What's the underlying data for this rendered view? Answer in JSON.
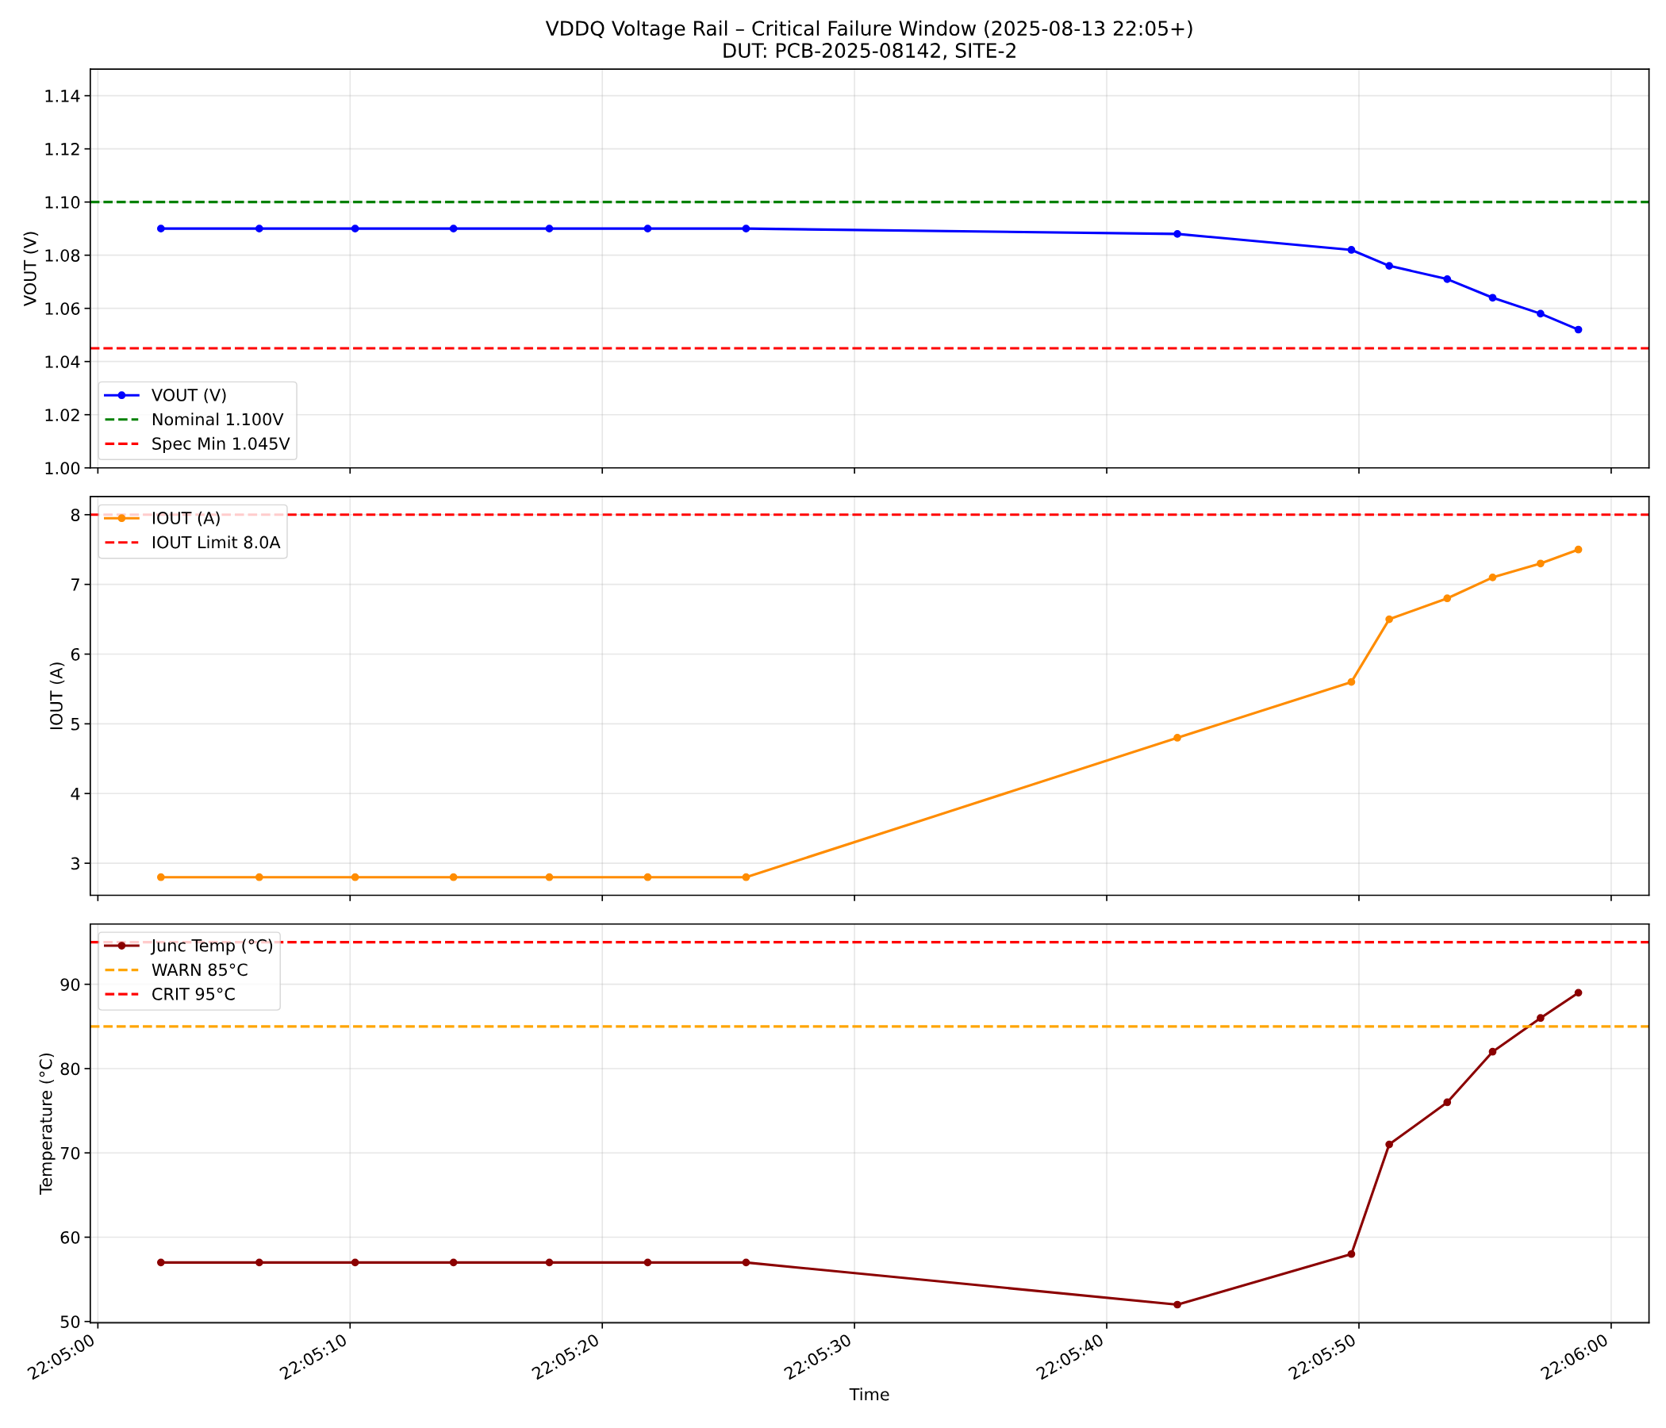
{
  "chart_data": [
    {
      "type": "line",
      "title": "VDDQ Voltage Rail – Critical Failure Window (2025-08-13 22:05+)",
      "subtitle": "DUT: PCB-2025-08142, SITE-2",
      "ylabel": "VOUT (V)",
      "x": [
        "2025-08-13T22:05:02.5",
        "2025-08-13T22:05:06.4",
        "2025-08-13T22:05:10.2",
        "2025-08-13T22:05:14.1",
        "2025-08-13T22:05:17.9",
        "2025-08-13T22:05:21.8",
        "2025-08-13T22:05:25.7",
        "2025-08-13T22:05:42.8",
        "2025-08-13T22:05:49.7",
        "2025-08-13T22:05:51.2",
        "2025-08-13T22:05:53.5",
        "2025-08-13T22:05:55.3",
        "2025-08-13T22:05:57.2",
        "2025-08-13T22:05:58.7"
      ],
      "series": [
        {
          "name": "VOUT (V)",
          "color": "#0000ff",
          "values": [
            1.09,
            1.09,
            1.09,
            1.09,
            1.09,
            1.09,
            1.09,
            1.088,
            1.082,
            1.076,
            1.071,
            1.064,
            1.058,
            1.052
          ]
        }
      ],
      "ref_lines": [
        {
          "axis": "y",
          "value": 1.1,
          "label": "Nominal 1.100V",
          "color": "#008000",
          "line_style": "dashed"
        },
        {
          "axis": "y",
          "value": 1.045,
          "label": "Spec Min 1.045V",
          "color": "#ff0000",
          "line_style": "dashed"
        }
      ],
      "xlim": [
        "2025-08-13T22:04:59.7",
        "2025-08-13T22:06:01.5"
      ],
      "xticks": [
        {
          "value": "2025-08-13T22:05:00",
          "label": null
        },
        {
          "value": "2025-08-13T22:05:10",
          "label": null
        },
        {
          "value": "2025-08-13T22:05:20",
          "label": null
        },
        {
          "value": "2025-08-13T22:05:30",
          "label": null
        },
        {
          "value": "2025-08-13T22:05:40",
          "label": null
        },
        {
          "value": "2025-08-13T22:05:50",
          "label": null
        },
        {
          "value": "2025-08-13T22:06:00",
          "label": null
        }
      ],
      "ylim": [
        1.0,
        1.15
      ],
      "yticks": [
        {
          "value": 1.0,
          "label": "1.00"
        },
        {
          "value": 1.02,
          "label": "1.02"
        },
        {
          "value": 1.04,
          "label": "1.04"
        },
        {
          "value": 1.06,
          "label": "1.06"
        },
        {
          "value": 1.08,
          "label": "1.08"
        },
        {
          "value": 1.1,
          "label": "1.10"
        },
        {
          "value": 1.12,
          "label": "1.12"
        },
        {
          "value": 1.14,
          "label": "1.14"
        }
      ],
      "grid": true,
      "legend": "bottom left",
      "marker": "circle",
      "line_style": "solid",
      "tick_labels": "y"
    },
    {
      "type": "line",
      "ylabel": "IOUT (A)",
      "x": [
        "2025-08-13T22:05:02.5",
        "2025-08-13T22:05:06.4",
        "2025-08-13T22:05:10.2",
        "2025-08-13T22:05:14.1",
        "2025-08-13T22:05:17.9",
        "2025-08-13T22:05:21.8",
        "2025-08-13T22:05:25.7",
        "2025-08-13T22:05:42.8",
        "2025-08-13T22:05:49.7",
        "2025-08-13T22:05:51.2",
        "2025-08-13T22:05:53.5",
        "2025-08-13T22:05:55.3",
        "2025-08-13T22:05:57.2",
        "2025-08-13T22:05:58.7"
      ],
      "series": [
        {
          "name": "IOUT (A)",
          "color": "#ff8c00",
          "values": [
            2.8,
            2.8,
            2.8,
            2.8,
            2.8,
            2.8,
            2.8,
            4.8,
            5.6,
            6.5,
            6.8,
            7.1,
            7.3,
            7.5
          ]
        }
      ],
      "ref_lines": [
        {
          "axis": "y",
          "value": 8.0,
          "label": "IOUT Limit 8.0A",
          "color": "#ff0000",
          "line_style": "dashed"
        }
      ],
      "xlim": [
        "2025-08-13T22:04:59.7",
        "2025-08-13T22:06:01.5"
      ],
      "xticks": [
        {
          "value": "2025-08-13T22:05:00",
          "label": null
        },
        {
          "value": "2025-08-13T22:05:10",
          "label": null
        },
        {
          "value": "2025-08-13T22:05:20",
          "label": null
        },
        {
          "value": "2025-08-13T22:05:30",
          "label": null
        },
        {
          "value": "2025-08-13T22:05:40",
          "label": null
        },
        {
          "value": "2025-08-13T22:05:50",
          "label": null
        },
        {
          "value": "2025-08-13T22:06:00",
          "label": null
        }
      ],
      "ylim": [
        2.54,
        8.26
      ],
      "yticks": [
        3,
        4,
        5,
        6,
        7,
        8
      ],
      "grid": true,
      "legend": "top left",
      "marker": "circle",
      "line_style": "solid",
      "tick_labels": "y"
    },
    {
      "type": "line",
      "xlabel": "Time",
      "ylabel": "Temperature (°C)",
      "x": [
        "2025-08-13T22:05:02.5",
        "2025-08-13T22:05:06.4",
        "2025-08-13T22:05:10.2",
        "2025-08-13T22:05:14.1",
        "2025-08-13T22:05:17.9",
        "2025-08-13T22:05:21.8",
        "2025-08-13T22:05:25.7",
        "2025-08-13T22:05:42.8",
        "2025-08-13T22:05:49.7",
        "2025-08-13T22:05:51.2",
        "2025-08-13T22:05:53.5",
        "2025-08-13T22:05:55.3",
        "2025-08-13T22:05:57.2",
        "2025-08-13T22:05:58.7"
      ],
      "series": [
        {
          "name": "Junc Temp (°C)",
          "color": "#8b0000",
          "values": [
            57,
            57,
            57,
            57,
            57,
            57,
            57,
            52,
            58,
            71,
            76,
            82,
            86,
            89
          ]
        }
      ],
      "ref_lines": [
        {
          "axis": "y",
          "value": 85,
          "label": "WARN 85°C",
          "color": "#ffa500",
          "line_style": "dashed"
        },
        {
          "axis": "y",
          "value": 95,
          "label": "CRIT 95°C",
          "color": "#ff0000",
          "line_style": "dashed"
        }
      ],
      "xlim": [
        "2025-08-13T22:04:59.7",
        "2025-08-13T22:06:01.5"
      ],
      "xticks": [
        {
          "value": "2025-08-13T22:05:00",
          "label": "22:05:00"
        },
        {
          "value": "2025-08-13T22:05:10",
          "label": "22:05:10"
        },
        {
          "value": "2025-08-13T22:05:20",
          "label": "22:05:20"
        },
        {
          "value": "2025-08-13T22:05:30",
          "label": "22:05:30"
        },
        {
          "value": "2025-08-13T22:05:40",
          "label": "22:05:40"
        },
        {
          "value": "2025-08-13T22:05:50",
          "label": "22:05:50"
        },
        {
          "value": "2025-08-13T22:06:00",
          "label": "22:06:00"
        }
      ],
      "ylim": [
        49.85,
        97.15
      ],
      "yticks": [
        50,
        60,
        70,
        80,
        90
      ],
      "grid": true,
      "legend": "top left",
      "marker": "circle",
      "line_style": "solid"
    }
  ]
}
